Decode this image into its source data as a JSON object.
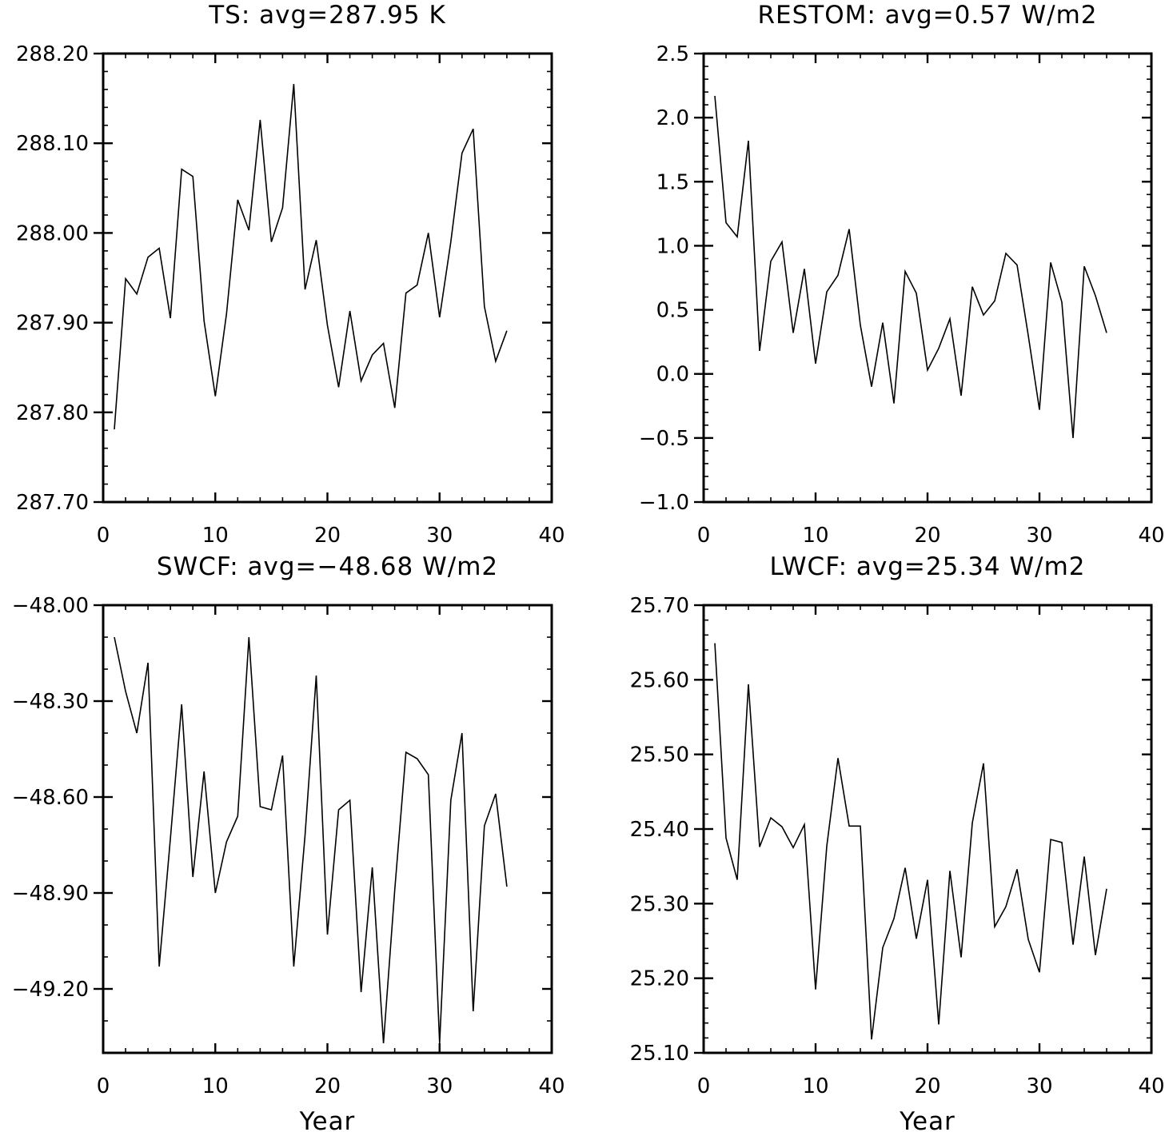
{
  "chart_data": [
    {
      "type": "line",
      "title": "TS: avg=287.95 K",
      "xlabel": "",
      "ylabel": "",
      "xlim": [
        0,
        40
      ],
      "ylim": [
        287.7,
        288.2
      ],
      "xticks": [
        "0",
        "10",
        "20",
        "30",
        "40"
      ],
      "yticks": [
        "287.70",
        "287.80",
        "287.90",
        "288.00",
        "288.10",
        "288.20"
      ],
      "x": [
        1,
        2,
        3,
        4,
        5,
        6,
        7,
        8,
        9,
        10,
        11,
        12,
        13,
        14,
        15,
        16,
        17,
        18,
        19,
        20,
        21,
        22,
        23,
        24,
        25,
        26,
        27,
        28,
        29,
        30,
        31,
        32,
        33,
        34,
        35,
        36
      ],
      "values": [
        287.781,
        287.949,
        287.932,
        287.973,
        287.983,
        287.905,
        288.071,
        288.063,
        287.902,
        287.818,
        287.91,
        288.037,
        288.003,
        288.126,
        287.99,
        288.028,
        288.166,
        287.937,
        287.992,
        287.897,
        287.828,
        287.913,
        287.835,
        287.864,
        287.877,
        287.805,
        287.933,
        287.942,
        288.0,
        287.906,
        287.99,
        288.089,
        288.116,
        287.918,
        287.857,
        287.891
      ]
    },
    {
      "type": "line",
      "title": "RESTOM: avg=0.57 W/m2",
      "xlabel": "",
      "ylabel": "",
      "xlim": [
        0,
        40
      ],
      "ylim": [
        -1.0,
        2.5
      ],
      "xticks": [
        "0",
        "10",
        "20",
        "30",
        "40"
      ],
      "yticks": [
        "−1.0",
        "−0.5",
        "0.0",
        "0.5",
        "1.0",
        "1.5",
        "2.0",
        "2.5"
      ],
      "x": [
        1,
        2,
        3,
        4,
        5,
        6,
        7,
        8,
        9,
        10,
        11,
        12,
        13,
        14,
        15,
        16,
        17,
        18,
        19,
        20,
        21,
        22,
        23,
        24,
        25,
        26,
        27,
        28,
        29,
        30,
        31,
        32,
        33,
        34,
        35,
        36
      ],
      "values": [
        2.17,
        1.18,
        1.07,
        1.82,
        0.18,
        0.88,
        1.03,
        0.32,
        0.82,
        0.08,
        0.64,
        0.77,
        1.13,
        0.38,
        -0.1,
        0.4,
        -0.23,
        0.8,
        0.63,
        0.03,
        0.2,
        0.43,
        -0.17,
        0.68,
        0.46,
        0.57,
        0.94,
        0.85,
        0.3,
        -0.28,
        0.87,
        0.56,
        -0.5,
        0.84,
        0.61,
        0.32
      ]
    },
    {
      "type": "line",
      "title": "SWCF: avg=−48.68 W/m2",
      "xlabel": "Year",
      "ylabel": "",
      "xlim": [
        0,
        40
      ],
      "ylim": [
        -49.4,
        -48.0
      ],
      "xticks": [
        "0",
        "10",
        "20",
        "30",
        "40"
      ],
      "yticks": [
        "−49.20",
        "−48.90",
        "−48.60",
        "−48.30",
        "−48.00"
      ],
      "x": [
        1,
        2,
        3,
        4,
        5,
        6,
        7,
        8,
        9,
        10,
        11,
        12,
        13,
        14,
        15,
        16,
        17,
        18,
        19,
        20,
        21,
        22,
        23,
        24,
        25,
        26,
        27,
        28,
        29,
        30,
        31,
        32,
        33,
        34,
        35,
        36
      ],
      "values": [
        -48.1,
        -48.27,
        -48.4,
        -48.18,
        -49.13,
        -48.73,
        -48.31,
        -48.85,
        -48.52,
        -48.9,
        -48.74,
        -48.66,
        -48.1,
        -48.63,
        -48.64,
        -48.47,
        -49.13,
        -48.72,
        -48.22,
        -49.03,
        -48.64,
        -48.61,
        -49.21,
        -48.82,
        -49.37,
        -48.89,
        -48.46,
        -48.48,
        -48.53,
        -49.37,
        -48.61,
        -48.4,
        -49.27,
        -48.69,
        -48.59,
        -48.88
      ]
    },
    {
      "type": "line",
      "title": "LWCF: avg=25.34 W/m2",
      "xlabel": "Year",
      "ylabel": "",
      "xlim": [
        0,
        40
      ],
      "ylim": [
        25.1,
        25.7
      ],
      "xticks": [
        "0",
        "10",
        "20",
        "30",
        "40"
      ],
      "yticks": [
        "25.10",
        "25.20",
        "25.30",
        "25.40",
        "25.50",
        "25.60",
        "25.70"
      ],
      "x": [
        1,
        2,
        3,
        4,
        5,
        6,
        7,
        8,
        9,
        10,
        11,
        12,
        13,
        14,
        15,
        16,
        17,
        18,
        19,
        20,
        21,
        22,
        23,
        24,
        25,
        26,
        27,
        28,
        29,
        30,
        31,
        32,
        33,
        34,
        35,
        36
      ],
      "values": [
        25.649,
        25.388,
        25.332,
        25.594,
        25.376,
        25.415,
        25.403,
        25.375,
        25.406,
        25.185,
        25.377,
        25.495,
        25.404,
        25.404,
        25.118,
        25.241,
        25.28,
        25.348,
        25.253,
        25.332,
        25.138,
        25.344,
        25.228,
        25.408,
        25.488,
        25.269,
        25.296,
        25.346,
        25.252,
        25.208,
        25.386,
        25.382,
        25.245,
        25.363,
        25.231,
        25.32
      ]
    }
  ]
}
